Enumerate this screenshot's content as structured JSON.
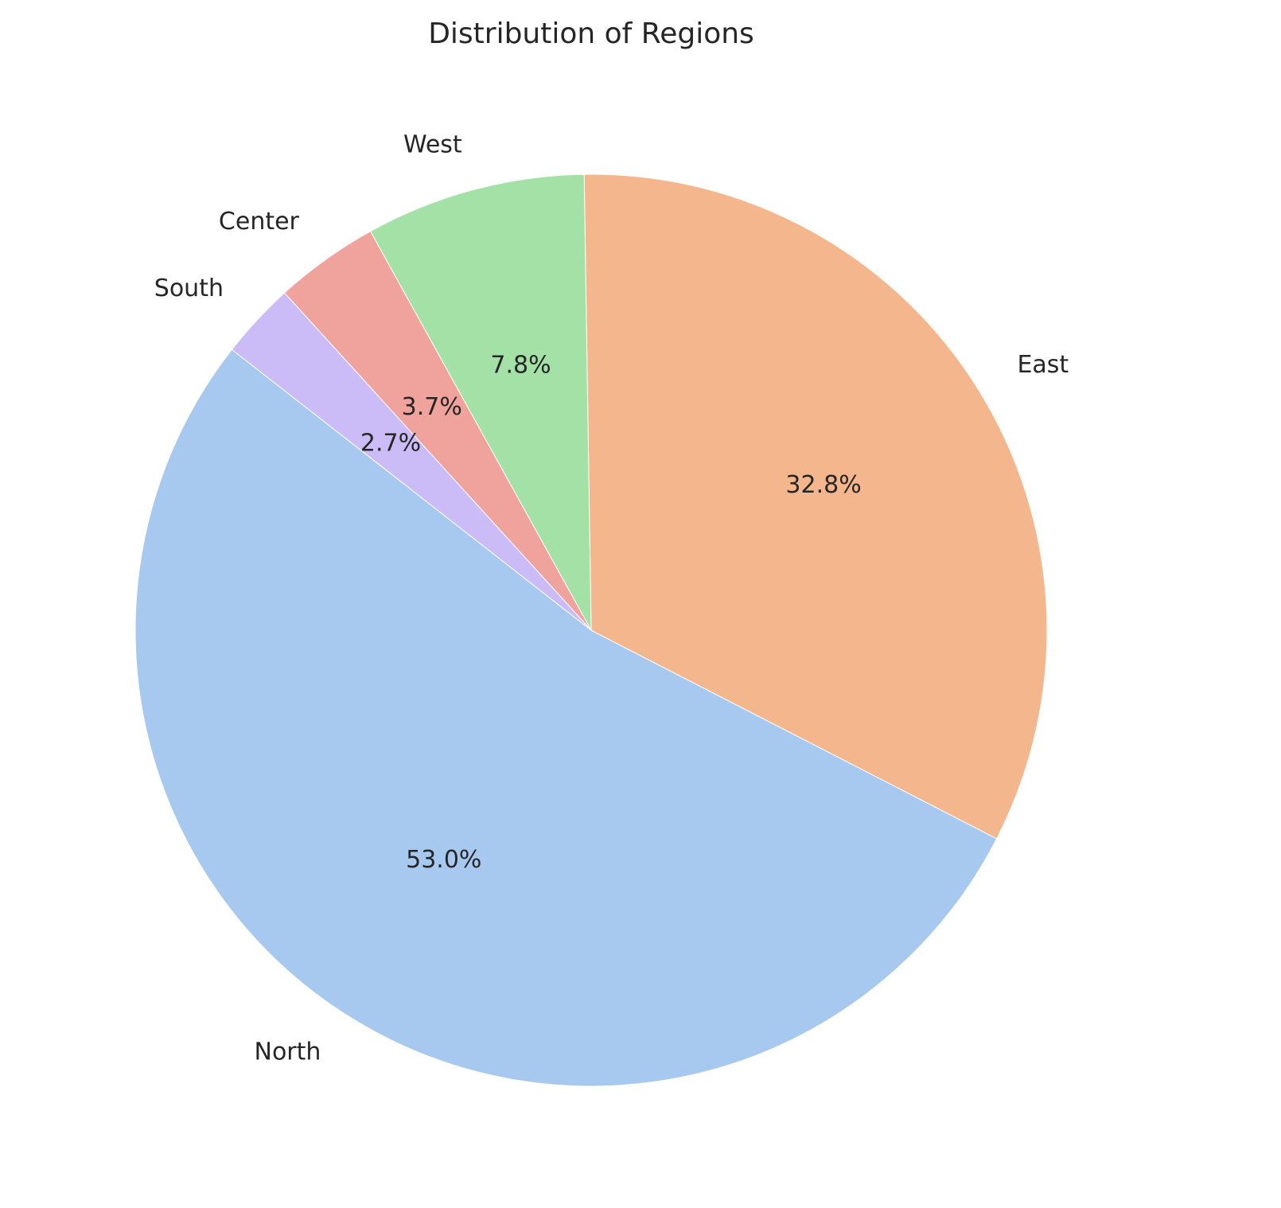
{
  "chart_data": {
    "type": "pie",
    "title": "Distribution of Regions",
    "categories": [
      "North",
      "East",
      "West",
      "Center",
      "South"
    ],
    "values": [
      53.0,
      32.8,
      7.8,
      3.7,
      2.7
    ],
    "value_labels": [
      "53.0%",
      "32.8%",
      "7.8%",
      "3.7%",
      "2.7%"
    ],
    "colors": [
      "#a8c9ef",
      "#f4b68c",
      "#a3e1a6",
      "#f0a39c",
      "#cbbcf7"
    ],
    "start_angle_deg": 142,
    "direction": "counterclockwise"
  }
}
